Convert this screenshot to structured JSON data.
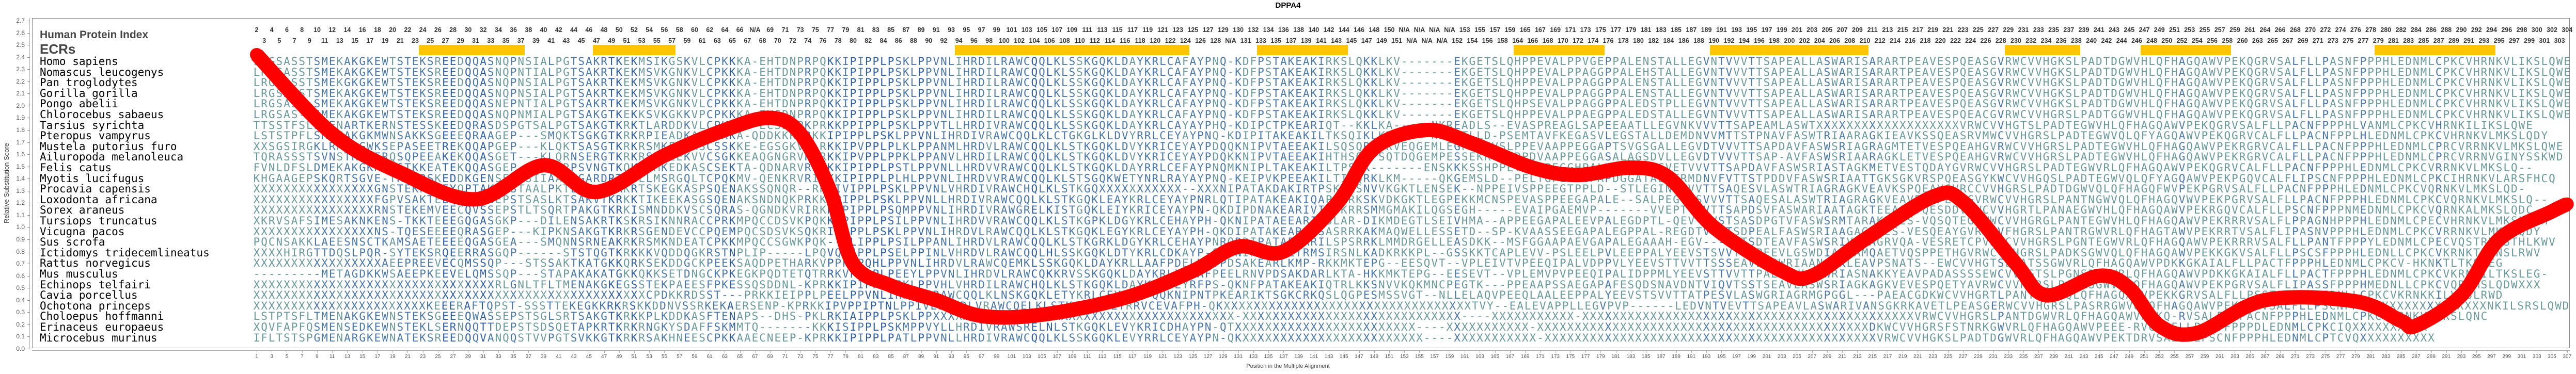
{
  "title": "DPPA4",
  "labels": {
    "human_protein_index": "Human Protein Index",
    "ecrs": "ECRs"
  },
  "human_index_segments": [
    {
      "from": 2,
      "to": 67
    },
    {
      "na": 1
    },
    {
      "from": 68,
      "to": 129
    },
    {
      "na": 1
    },
    {
      "from": 130,
      "to": 151
    },
    {
      "na": 7
    },
    {
      "from": 152,
      "to": 159
    },
    {
      "from": 164,
      "to": 261
    },
    {
      "from": 263,
      "to": 304
    }
  ],
  "na_label": "N/A",
  "ecr_regions": [
    [
      23,
      36
    ],
    [
      46,
      56
    ],
    [
      94,
      124
    ],
    [
      134,
      145
    ],
    [
      168,
      179
    ],
    [
      194,
      214
    ],
    [
      233,
      242
    ],
    [
      251,
      262
    ],
    [
      282,
      297
    ]
  ],
  "colors": {
    "ecr": "#ffc600",
    "line": "#ff0000",
    "conserved": "#0b3c9e",
    "mid": "#2e5fa3",
    "low": "#4a78a8",
    "variable": "#6b9a9b"
  },
  "alignment": [
    {
      "species": "Homo sapiens",
      "seq": "LRGSASSTSMEKAKGKEWTSTEKSREEDQQASNQPNSIALPGTSAKRTKEKMSIKGSKVLCPKKKA-EHTDNPRPQKKIPIPPLPSKLPPVNLIHRDILRAWCQQLKLSSKGQKLDAYKRLCAFAYPNQ-KDFPSTAKEAKIRKSLQKKLKV-------EKGETSLQHPPEVALPPVGEPPALENSTALLEGVNTVVVTTSAPEALLASWARISARARTPEAVESPQEASGVRWCVVHGKSLPADTDGWVHLQFHAGQAWVPEKQGRVSALFLLPASNFPPPHLEDNMLCPKCVHRNKVLIKSLQWE"
    },
    {
      "species": "Nomascus leucogenys",
      "seq": "LRGSASSTSMEKAKGKEWTSTEKSREEDQQASNQPNTIALPGTSAKRTKEKMSVKGNKVLCPKKKA-EHTDNPRPQKKIPIPPLPSKLPPVNLIHRDILRAWCQQLKLSSKGQKLDAYKRLCAFAYPNQ-KDFPSTAKEAKIRKSLQKKLKV-------EKGETSLQHPPEVALPPAGGPPALEHSTALLEGVNTVVVTTSAPEALLASWARISARARTPEAVESPQEASGVRWCVVHGKSLPADTDGWVHLQFHAGQAWVPEKQGRVSALFLLPASNFPPPHLEDNMLCPKCVHRNKVLIKSLQWE"
    },
    {
      "species": "Pan troglodytes",
      "seq": "LRGSASSTSMEKGKGKEWTSTEKSREEDQQASNQPNSIALPGTSAKRTKEKMSVKGNKVLCPKKKA-EHTDNPRPQKKIPIPPLPSKLPPVNLIHRDILRAWCQQLKLSSKGQKLDAYKRLCAFAYPNQ-KDFPSTAKEAKIRKSLQKKLKV-------EKGETSLQHPPEVALPPAGGPPALENSTALLEGVNTVVVTTSAPEALLASWARISARARTPEAVESPQEASGVRWCVVHGKSLPADTDGWVHLQFHAGQAWVPEKQGRVSALFLLPASNFPPPHLEDNMLCPKCVHRNKVLIKSLQWE"
    },
    {
      "species": "Gorilla gorilla",
      "seq": "LRGSASSTSMEKAKGKEWTSTEKSREEDQQASNQPNSIALPGTSAKRTKEKMSVKGNKVLCPKKKA-EHTDNPRPQKKIPIPPLPSKLPPVNLIHRDILRAWCQQLKLSSKGQKLDAYKRLCAFAYPNQ-KDFPSTAKEAKIRKSLQKKLKV-------EKGETSLQHPPEVALPPAGGPPALENSTALLEGVNTVVVTTSAPEALLASWARISARARTPEAVESPQEASGVRWCVVHGKSLPADTDGWVHLQFHAGQAWVPEKQGRVSALFLLPASNFPPPHLEDNMLCPKCVHRNKVLIKSLQWE"
    },
    {
      "species": "Pongo abelii",
      "seq": "LRGSASA-SMEKAKGKEWTSTEKSREEDQQASNEPNTIALPGTSAKRTKEKMSVKGNKVLCPKKKA-EHTDNPRPQKKIPIPPLPSKLPPVNLIHRDILRAWCQQLKLSSKGQKLDAYKRLCAFAYPNQ-KDFPSTAKEAKIRKSLQKKLKV-------EKGETSLQHPSEVALPPAGGPPALEDSTPLLEGVNTVVVTTSAPEALLASWARISARARTPEAVESPQEASGVRWCVVHGKSLPADTDGWVHLQFHAGQAWVPEKQGRVSALFLLPASNFPPPHLEDNMLCPKCVHRNKVLIKSLQWE"
    },
    {
      "species": "Chlorocebus sabaeus",
      "seq": "LRGSAS-TSMEKAKGKEWTSTEKSREEDQQASNQPNMIALPGTSAKGTKEKKSVKGKKVPCPKKKA-EYSDNPRPQKKIPIPPLPSKLPPVNLIHRDILRAWCQQLKLSSKGQKLDAYKRLCAFAYPNQ-KDFPSTAKEAKIRKSLQKKLKV-------EKGETSLQHPPEVALPPAEGPPALEDSTALLEGVNTVVVTTSAPEALLASWARISARARTPEAVESPQEACGVRWCVVHGRSLPADTGGWVHLQFHAGQAWVPEKQGRVSALFLLPASNFPPPHLEDNMLCPKCVHRNKVLIKSLQWE"
    },
    {
      "species": "Tarsius syrichta",
      "seq": "TTSSTFSLSMENARTKERNSTESSKEEDQRASDSPGTSALPGTSAKGTKRKTLARDDKVLCPKK-A-ECSDNPKPRKKPPIPPLPSKLPPVTLLHRDIVRAWCQQLKLSSKGQKLDAYKRLCAYAYPHQ-KDIPCTPKEARIQT--KKLKA-----NKREADLS--EVASPREAGLSAPEEAATLLEGVNKVVVTTSAPEAMLASWTXXXXXXXXXXXXXXXXXXXVRWCVVHGTSLPADTEGWVHLQFHAGQAWVPEKQGRVSALFLLPACNFPPPHLVANMLCPKCVHRNKILIKSLQWE"
    },
    {
      "species": "Pteropus vampyrus",
      "seq": "LSTSTPFLSMENAKGKMWNSAKKSGEEEQRAAGEP---SMQKTSGKGTKRKRPIEADKASCPKKA-QDDKKKLRKKIPIPPLPSKLPPVNLIHRDIVRAWCQQLKLCTGKGLKLDVYRRLCEYAYPNQ-KDIPITAKEAKILTKSQIKLKM-----KRGETLLD-PSEMTAVFKEGASVLEGSTALLDEMDNVVMTTSTPNAVFASWTRIAARAGKIEAVKSSQEASRVMWCVVHGRSLPADTEGWVQLQFYAGQAWVPEKQGRVCALFLLPACNFPPLHLEDNMLCPKCVHRNKVLMKSLQDY"
    },
    {
      "species": "Mustela putorius furo",
      "seq": "XXSGSIRGKLRKRSGWKSEPASEETREKQQAPGEP---KLQKTSASGTKRKRSMKEDKASCSSKKE-EGSGKVRLRKKIPVPPLPLKLPPANMLHRDVLRAWCQQLKLSTKGQKLDVYKRICEYAYPDQQKNIPVTAEEAKILSQSQRPSKVEQGEMLEGPGKRVSLPPEVAAPPEGGAPTSVGSGALLEGVDTVVVTTSAPDAVFASWSRIAGRAGMTETVESPQEAHGVRWCVVHGRSLPADTEGWVHLQFHAGQAWVPEKRGRVCALFLLPACNFPPPHLEDNMLCPRCVRRNKVLMKSLQWE"
    },
    {
      "species": "Ailuropoda melanoleuca",
      "seq": "TQRASSSTSVNSTKSGERQSQPEEAKEKQQASGET---KLQRNSERGTKRKRSMKEEKVVCSGKKEAQGNGRVRLRKKIPVPPLPPKLPPANVLHRDILRAWCQQLKLSTKGQKLDVYKRICEYAYPDQKKNIPVTAEEAKIHTHSQRPSQTDQGEMPESSEKRVSYRPDVAAPPEGGASALAGSDVLLEGVDTVVVTTSAP-AVFASWSRIAARAGKLETVESPQEAHGVRWCVVHGRSLPADTEGWVHLQFHAGQAWVPEKRGRVCALFLLPACNFPPPHLEDNMLCPRCVRRNVGINYSSKWD"
    },
    {
      "species": "Felis catus",
      "seq": "FVNLDFSLDMEKAKGKK-NSTKKEATEKQQASGEP---KLPRPSVNGTKQKRSMKEDKASCSEKTA-QDNARVRLRKKIPIPPLPSTLPPVNLLHRDVVRAWCQQLKLSTKGQKLDAYRRLCEFAYPNQMKNIPLTAKEAKILTPSHK-------ENSKKKSSHPPEVAAPPEGGHPALVGSPLPEGVETVVVTTSAPDAVFASWSRIASTAGKMETVESTQDAYGVRWCVVHGRSLPADTEGWVRLQFHAGQAWVPEKQGRVCALFLLPACNFPPPHLEDNMLCPKCVRRNKVLMKSLQ--"
    },
    {
      "species": "Myotis lucifugus",
      "seq": "KHGAAGEPSKQRTSGVE-TKRKRSKEDDKGENSEMSSIIAARVGARDRTVGLLMSRGQLTCPQKMV-QENKRVRIRKKIPIPPLPLHLPPVNLIHRDVVRAWCQQLKLSTSGQKWETYNRLRAYAYPNQ-KEIPVKPEEAKILTITQRKLKM-----QKGEMSLD--PELTGPLVGGPAPDGGATALLERMDNVFVTTSTPDDVFASWSRIAATTGKSGKVRSPQEASGYKWCVVHGQSLPADTEGWVQLQFYAGQAWVPEKPGQVCALFLIPSCNFPPPHLEDNMLCPKCIHRNKVLARSFHCQ"
    },
    {
      "species": "Procavia capensis",
      "seq": "XXXXXXXXXXXXXXXXGNSTEKPGEEYQPTAKEASTAALPKTLSKVTKRKRTSKEGKASPSQENAKSSQNQR--RKKIVIPPLPSKLPPVNLVHRDIVRAWCHQLKLSTKGQXXXXXXXXXXX--XXXNIPATAKDAKIRTPSKTKSNVVKGKTLENSEK--NPPEIVSPPEEGTPPLD--STLEGINTVVVTTSAQESVLASWTRIAGRAGKVEAVKSPQEAYGVRCCVVHGRSLPADTDGWVQLQFHAGQFWVPEKPGRVSALFLLPACNFPPPHLEDNMLCPKCVQRNKVLMKSLQD-"
    },
    {
      "species": "Loxodonta africana",
      "seq": "XXXXXXXXXXXXXXXXFGPVSAKTEEQQQAANEPSTSASLKTSAKVTKRKKTIKEEKASGSQENAKSNDNQKPRKKIPIPPLPSKLPPVNLLHRDIVRAWCQQLKLSTKGQKLEAYKRLCEYAYPNRLQTIPATAKEAKIQAPLKRKSKVDKGKTLEGPEKKMCNSPEVASPPEEGAPALE--SALPEGVNSVVVTTSAQESALASWTRIAGRAGKVEAVESPPEGYGVRWCVVHGRSLPANTNGWVQLQFHAGQVWVPEKPGRVSALFLLPACNFPPPHLEDNMLCPKCVQRNKVLMKSLQ--"
    },
    {
      "species": "Sorex araneus",
      "seq": "XXXXXXXXXXXXXXXXRNSTEKEMVEECQVSSEPSTLTSQRTPAKGTKRKISMNDDKVSCSQRAS-QGNDKVRIRKKIPIPPLPSQMPPVNLIHRDIVRAWGRELKISTGQKLEIYKRICEYAYPN-QKDIPDNAKEARIVIESKRRSMMGMAKILQGSEGH-----EVAIPGAEMVP-------VVEPTVVVTTSAPDSVFASWARIAATAGKTEEAQSTQESDDVRWCVVHGRTLPANAEGWVHLQFHAGQAWVPEKRGQVCALFLLPSCNFPPPNMEDNMLCPKCVQRNKALMKSLQDC"
    },
    {
      "species": "Tursiops truncatus",
      "seq": "XKRVSAFSIMESAKNKENS-TKKTEEEGQGASGKP---DILENSAKRTKSKRSIKNNRACCPRKMPQCCDSVKPQKKIPIPPLPSILPPVNLIHRDVVRAWCQQLKLSTKGPKLDGYKRLCEHAYPH-QKNIPATAEEARIISLAR-DIKMDEGTLSEIVHMA--APPEEGAPALEEVPALEGDPTL-QEV--VSTSASDPGTVFASWSRMTARAKKMES-VQSQTEGVWWCVVHGRGLPANTEGWVHLQFHAGQAWVPEKRRRVSALFLPPAGNHPPPHLEDNMLCPECVHRNKVLMKSLQDH"
    },
    {
      "species": "Vicugna pacos",
      "seq": "XXXXXXXXXXXXXXXXNS-TQESEEEEQRASGEP---KIPKNSAKGTKRKRSGENDEVCCPQEMPQCSDSVKSQKRIPIPPLPSKLPPVNLIHRDVLRAWCQQLKLSTKGQKLEGYKRLCEYAYPH-QKDIPATAKEARILSASRRKAKMAQWELLESSETD--SP-KVAASSEEGAPALEGPPAL-REGDTVLSTSDPEALFASWSRIAAGAGKVES-VESQEAYGVRWCVFHGRSLPANTRGWVRLQFHAGTAWVPEKRRTVSALFLIPASNVPPPHLEDNMLCPKCVRRNKVLMKSLQDY"
    },
    {
      "species": "Sus scrofa",
      "seq": "PQCNSAKKLAEESNSCTKAMSAETEEEEQGASGEA---SMQNNSRNEAKRKRSMKNDEATCPKKMPQCCSGWKPQK--NLIPPLPSILPPANLIHRDVLRAWCQQLKLSTKGRKLDGYKRLCEHAYPNRQRDIPATAEEARILSPSRRKLMMDRGELLEASDKK--MSFGGAAPAEVGAPALEGAAAH-EGV---VSTSDTEAVFASWSRIVSEAGRVQA-VESRETCPVKWCVVHGRSLPGNTEGWVRLQFHAGQAWVPEKRRRVSALFLLPANTFPPPYLEDNMLCPECVQSTRVFSTHLKWV"
    },
    {
      "species": "Ictidomys tridecemlineatus",
      "seq": "XXXXHIRGTTDQSLPQR-SYTEKSRQEERRASGQP------STSTQGTKRKKKVQDDQGKRSTNPLIP-----LPQVQSSPPLPSELPPINLVHRDVLRAWCQQLHLSSKGQKLDTYKRLCDKAYP-QDKNIPIAVKETRMSIRSNLKADKRKKPL--GSSKKTCAPLEVV-PSLEELPVLEEPPALYEEVSTSVVTTAPEEVLGSWDIAASAMQAETVQSPPETHGVRWCVVHGRSLPADKSGWVQLQFHAGQAWVPEKKGKVSALFLLPSCSFPPPHLEDNLLCPKCVKRNKTLTNSLRWV"
    },
    {
      "species": "Rattus norvegicus",
      "seq": "XXXXXXXXXXXXXXXXXAEEPREEVECQMSSQP---STSSAKTKATGKKQRKSEKDDGCKPEEKSAQDPETHARKVPPPFPQHLPPVNLIHRDVLRAWCQEMKLSSKGQKLDAYKRLLAAFPDELKNVPDSAKEARLKMP-RKKMKTEPG--EESQVT--VPLEIVTVPEEQIPALVDPPVLYEEVSTTVVTTSSSEAVLASWRIAANAKKLEAVPSNATS--EWCVVHGTSLPATSSGWVRLQFHAGQAWVPDKKGKAIALFLLPACTFPPPHLEDNMLCPKCV-HKNKTLTKSLEG"
    },
    {
      "species": "Mus musculus",
      "seq": "---------METAGDKKWSAEEPKEEVELQMSSQP---STAPAKAKATGKKQKKSETDNGCKPKEGKPQDTETQTRRKVPIPPLPEEYLPPVNLIHRDVLRAWCQKKRVSSKGQKLDAYKRLLEKAFPEELRNVPDSAKDARLKTA-HKKMKTEPG--EESEVT--VPLEMVPVPEEQIPALIDPPMLYEEVSTTVVTTPAEEAVLASWRIASNAKKYEAVPADASSSSEWCVVHGTSLPGNSRGWVRLQFHAGQAWVPDKKGKAIALFLLPACTFPPPHLEDNMLCPKCVKRNKILTKSLEG-"
    },
    {
      "species": "Echinops telfairi",
      "seq": "XXXXXXXXXXXXXXXXXXXXXXXXXXXXXXXXRLGNLTFLTMENAKGKEGSSTEKPAEESFPKESSQSDDNL-KPRKKIPIPPLPSKLPPVHLVHRDILRAWCHQLKLSTKGQKLDAYKRLCEYRFPS-QKNFPATAKEAKIQTRLKKSNVVKQKMNCPEGTK---PPEAAPSSAEGAPAFESQDSNAVDNTVIQVTSSTSEAVLASWSRIAGKAGKVEVESPQETYAVRWCVVHGRSLPAWRSGWVRLQFHAGQAWVPEKPGRVSALFLIPASSFPPPHMEDNLLCPKCVQRTMSLQDWXXX"
    },
    {
      "species": "Cavia porcellus",
      "seq": "XXXXXXXXXXXXXXXXXXXXXXXXXXXXXXXXXXXXXXXXXXXXXXXXXXXXCPDKKRDSST---PRKKIEIPPLPEELPPVNLIHRDVLRAWCQQLKLNSKGQKLETYKRLCEYAYP-QQKNIPNTPKEARIKTSGKCRKQSLQGPESMSSVGT--NLLELAQVPEEQLAALEEPPALYEEVSTSVVTTATPESVLASWGRIAGRMGPGGL---PAEACGDKWCVVHGRTLPANTPGWVQLQFHAGQAWVPEKKGRVSALFLLPSSTFPPPHLEDNLLCPKCVKRNKKILVKSLRWD"
    },
    {
      "species": "Ochotona princeps",
      "seq": "XXXXXXXXXXXXXXXXXXXXXXXKEEERAFTQPST-SSSTTEKEGKKRKRSKKDDNVSSRKEKAERSENP-KPRKKIPVPPIPTNLPPIVLIHRDLVRAWCQELKLSTKGPKIDLYRRVCEVAFPH-QKXXXXXXXXXXXXXXXXXXXXXXXXXXXXXXXXXTVY--EALEVAPPLLEGVPVP------LEDVNTVEVTTSAPEAVLASWARIVANSGKRKAVETLPEASGERWCVVHGRSLPASRRGWVQLQFHAGQAWVPEKKGRVSALFLLPSCNFPXXXXXXXXXXXXXXXXXNKILSRSLQWD"
    },
    {
      "species": "Choloepus hoffmanni",
      "seq": "LSTPTSFLTMENAKGKEWNSTEKSGEEEQWASSEPSTSGLSRTSAKGTKRKKPLKDDKASFTENAPS--DHS-PKLRKIAIPPLPSKLPPXXXXXXXXXXXXXXXXXXXXXXXXXXXXXXXXXXXXXXXX-XXXXXXXXXXXXXXXXXXXXXXXXXXXXX----XXXXXXXXXXX-XXXXXXXXXXXXXXXXXXXXXXXXXXXXXXXXXXXXXXXXXXXXVRWCVVHGRSLPANTDGWVRLQFHAGQAWVPEKQ-RVSALFLLPACNFPPPHLEDNMLCPKCVQRNKVLMKSLQNC"
    },
    {
      "species": "Erinaceus europaeus",
      "seq": "XQVFAPFQSMENSEDKEWNSTEKLSERNQQTTDEPSTSDSQETAPKRTKRKRNGKYSDAFFSKMMTQ-------KKKISIPPLPSKMPPVYLLHRDIVRAWSRELNLSTKGQKLEVYKRICDHAYPN-QTXXXXXXXXXXXXXXXXXXXXXXXX----XXXXXXXXXXX-XXXXXXXXXXXXXXXXXXXXXXXXXXXXXXXXXXXXXXXXXXXXDKWCVVHGRSFSTNRKGWVRLQFHAGQAWVPEEE-RVCALFLLPACTFPPPDLEDNMLCPKCIQXXXXXXXXXX"
    },
    {
      "species": "Microcebus murinus",
      "seq": "IFLTSTSPGMENARGKEWNATEKSREEDQQVANQQSTVVPGTSVKKGTKRKRSAKHNEESCPKKAAECNEEP-KPRKKIPIPPLPATLPPVNLLHRDIVRAWCQQLKLSSKGQKLEVYRRLCEYAYPN-QKXXXXXXXXXXXXXXXXXXXXXXXX----XXXXXXXXXXX-XXXXXXXXXXXXXXXXXXXXXXXXXXXXXXXXXXXXXXXXXXXXVRWCVVHGKSLPADTDGWVRLQFHAGQAWVPEKTDRVSALFLLPSCNFPPPHLEDNMLCPTCVQXXXXXXXXXX"
    }
  ],
  "chart_data": {
    "type": "line",
    "title": "DPPA4",
    "xlabel": "Position in the Multiple Alignment",
    "ylabel": "Relative Substitution Score",
    "xlim": [
      1,
      307
    ],
    "ylim": [
      0.0,
      2.7
    ],
    "x_tick_step": 2,
    "y_ticks": [
      "0.0",
      "0.1",
      "0.2",
      "0.3",
      "0.4",
      "0.5",
      "0.6",
      "0.7",
      "0.8",
      "0.9",
      "1.0",
      "1.1",
      "1.2",
      "1.3",
      "1.4",
      "1.5",
      "1.6",
      "1.7",
      "1.8",
      "1.9",
      "2.0",
      "2.1",
      "2.2",
      "2.3",
      "2.4",
      "2.5",
      "2.6",
      "2.7"
    ],
    "grid": false,
    "series": [
      {
        "name": "Relative Substitution Score",
        "x": [
          1,
          11,
          20,
          30,
          39,
          46,
          55,
          63,
          69,
          73,
          77,
          80,
          85,
          91,
          97,
          105,
          116,
          125,
          131,
          137,
          144,
          149,
          156,
          162,
          170,
          176,
          183,
          188,
          194,
          203,
          207,
          214,
          223,
          227,
          234,
          238,
          245,
          249,
          253,
          258,
          267,
          279,
          285,
          287,
          293,
          298,
          305,
          307
        ],
        "y": [
          2.42,
          1.77,
          1.45,
          1.23,
          1.51,
          1.29,
          1.59,
          1.8,
          1.9,
          1.77,
          1.29,
          0.7,
          0.52,
          0.4,
          0.27,
          0.28,
          0.42,
          0.64,
          0.84,
          0.8,
          1.19,
          1.65,
          1.8,
          1.69,
          1.49,
          1.43,
          1.49,
          1.41,
          1.0,
          0.64,
          0.6,
          0.9,
          1.25,
          1.21,
          0.7,
          0.44,
          0.6,
          0.5,
          0.19,
          0.13,
          0.4,
          0.39,
          0.23,
          0.19,
          0.44,
          0.9,
          1.13,
          1.19
        ]
      }
    ]
  }
}
